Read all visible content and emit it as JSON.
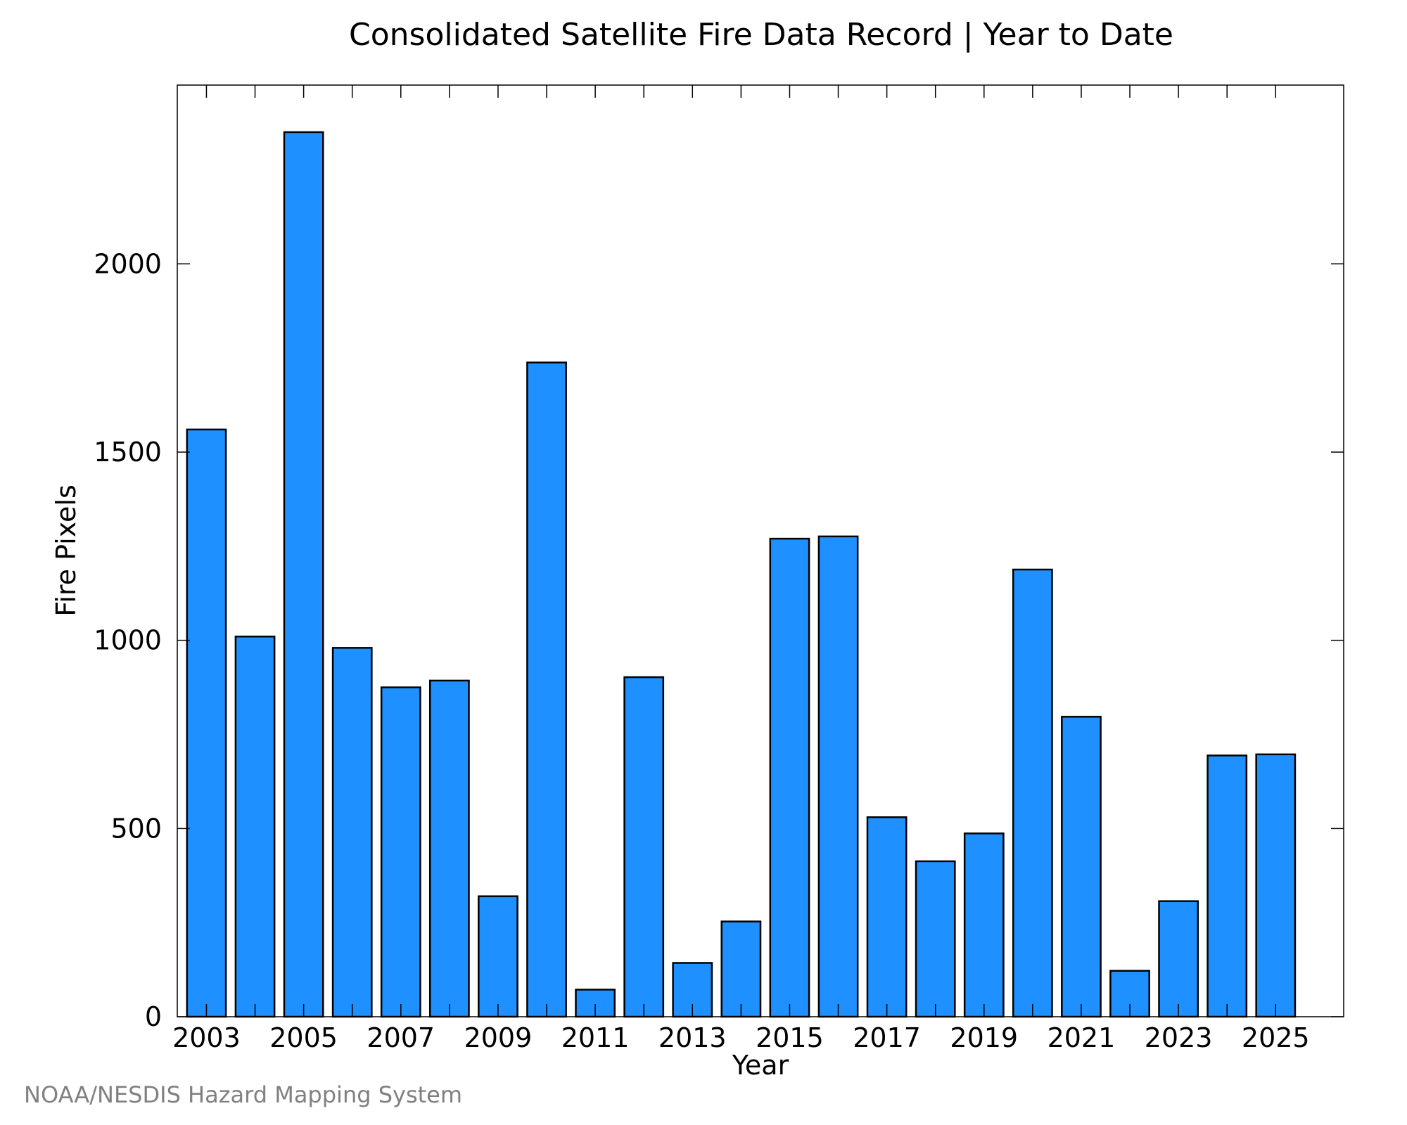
{
  "chart_data": {
    "type": "bar",
    "title": "Consolidated Satellite Fire Data Record | Year to Date",
    "xlabel": "Year",
    "ylabel": "Fire Pixels",
    "credit": "NOAA/NESDIS Hazard Mapping System",
    "categories": [
      "2003",
      "2004",
      "2005",
      "2006",
      "2007",
      "2008",
      "2009",
      "2010",
      "2011",
      "2012",
      "2013",
      "2014",
      "2015",
      "2016",
      "2017",
      "2018",
      "2019",
      "2020",
      "2021",
      "2022",
      "2023",
      "2024",
      "2025"
    ],
    "values": [
      1560,
      1010,
      2350,
      980,
      875,
      893,
      320,
      1738,
      72,
      902,
      143,
      253,
      1270,
      1276,
      530,
      413,
      487,
      1188,
      797,
      122,
      307,
      694,
      697
    ],
    "x_tick_labels": [
      "2003",
      "2005",
      "2007",
      "2009",
      "2011",
      "2013",
      "2015",
      "2017",
      "2019",
      "2021",
      "2023",
      "2025"
    ],
    "y_ticks": [
      {
        "value": 0,
        "label": "0"
      },
      {
        "value": 500,
        "label": "500"
      },
      {
        "value": 1000,
        "label": "1000"
      },
      {
        "value": 1500,
        "label": "1500"
      },
      {
        "value": 2000,
        "label": "2000"
      }
    ],
    "ylim": [
      0,
      2475
    ],
    "grid": false,
    "colors": {
      "bar_fill": "#1e90ff",
      "bar_stroke": "#000000",
      "credit": "#808080"
    }
  }
}
